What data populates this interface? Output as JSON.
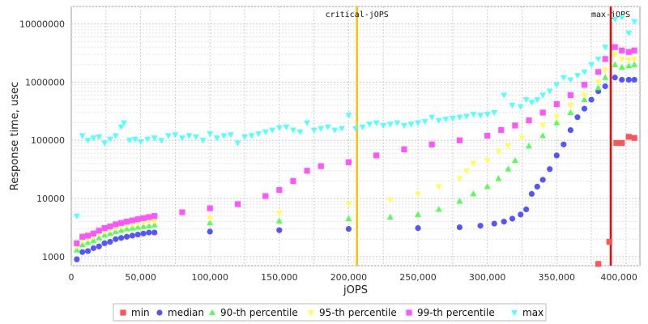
{
  "chart_data": {
    "type": "scatter",
    "xlabel": "jOPS",
    "ylabel": "Response time, usec",
    "xlim": [
      0,
      410000
    ],
    "ylim": [
      700,
      20000000
    ],
    "y_scale": "log",
    "grid": true,
    "x_ticks": [
      0,
      50000,
      100000,
      150000,
      200000,
      250000,
      300000,
      350000,
      400000
    ],
    "x_tick_labels": [
      "0",
      "50,000",
      "100,000",
      "150,000",
      "200,000",
      "250,000",
      "300,000",
      "350,000",
      "400,000"
    ],
    "y_ticks": [
      1000,
      10000,
      100000,
      1000000,
      10000000
    ],
    "y_tick_labels": [
      "1000",
      "10000",
      "100000",
      "1000000",
      "10000000"
    ],
    "legend_position": "bottom",
    "markers": [
      {
        "label": "critical-jOPS",
        "x": 206000,
        "color": "#ffc000"
      },
      {
        "label": "max-jOPS",
        "x": 389000,
        "color": "#ff0000"
      }
    ],
    "series": [
      {
        "name": "min",
        "color": "#ff5555",
        "shape": "square",
        "points": [
          [
            380000,
            750
          ],
          [
            388000,
            1800
          ],
          [
            393000,
            90000
          ],
          [
            397000,
            90000
          ],
          [
            402000,
            115000
          ],
          [
            406000,
            110000
          ]
        ]
      },
      {
        "name": "median",
        "color": "#5555ff",
        "shape": "circle",
        "points": [
          [
            4000,
            900
          ],
          [
            8000,
            1200
          ],
          [
            12000,
            1250
          ],
          [
            16000,
            1400
          ],
          [
            20000,
            1500
          ],
          [
            24000,
            1700
          ],
          [
            28000,
            1800
          ],
          [
            32000,
            2000
          ],
          [
            36000,
            2100
          ],
          [
            40000,
            2200
          ],
          [
            44000,
            2300
          ],
          [
            48000,
            2400
          ],
          [
            52000,
            2500
          ],
          [
            56000,
            2600
          ],
          [
            60000,
            2600
          ],
          [
            100000,
            2700
          ],
          [
            150000,
            2850
          ],
          [
            200000,
            3000
          ],
          [
            250000,
            3100
          ],
          [
            280000,
            3200
          ],
          [
            295000,
            3400
          ],
          [
            305000,
            3700
          ],
          [
            312000,
            4000
          ],
          [
            318000,
            4500
          ],
          [
            324000,
            5300
          ],
          [
            328000,
            6500
          ],
          [
            332000,
            12000
          ],
          [
            336000,
            16000
          ],
          [
            340000,
            21000
          ],
          [
            345000,
            32000
          ],
          [
            350000,
            55000
          ],
          [
            355000,
            85000
          ],
          [
            360000,
            150000
          ],
          [
            365000,
            250000
          ],
          [
            370000,
            350000
          ],
          [
            375000,
            500000
          ],
          [
            380000,
            700000
          ],
          [
            385000,
            850000
          ],
          [
            392000,
            1200000
          ],
          [
            397000,
            1100000
          ],
          [
            402000,
            1100000
          ],
          [
            406000,
            1100000
          ]
        ]
      },
      {
        "name": "90-th percentile",
        "color": "#55ff55",
        "shape": "triangle-up",
        "points": [
          [
            4000,
            1300
          ],
          [
            8000,
            1600
          ],
          [
            12000,
            1750
          ],
          [
            16000,
            1900
          ],
          [
            20000,
            2100
          ],
          [
            24000,
            2350
          ],
          [
            28000,
            2500
          ],
          [
            32000,
            2700
          ],
          [
            36000,
            2850
          ],
          [
            40000,
            3000
          ],
          [
            44000,
            3100
          ],
          [
            48000,
            3200
          ],
          [
            52000,
            3300
          ],
          [
            56000,
            3400
          ],
          [
            60000,
            3500
          ],
          [
            100000,
            3800
          ],
          [
            150000,
            4100
          ],
          [
            200000,
            4500
          ],
          [
            230000,
            4800
          ],
          [
            250000,
            5300
          ],
          [
            265000,
            6500
          ],
          [
            280000,
            9000
          ],
          [
            290000,
            12000
          ],
          [
            300000,
            16000
          ],
          [
            308000,
            22000
          ],
          [
            315000,
            32000
          ],
          [
            320000,
            45000
          ],
          [
            330000,
            80000
          ],
          [
            340000,
            120000
          ],
          [
            350000,
            200000
          ],
          [
            360000,
            300000
          ],
          [
            370000,
            500000
          ],
          [
            380000,
            800000
          ],
          [
            385000,
            1200000
          ],
          [
            392000,
            2000000
          ],
          [
            397000,
            1800000
          ],
          [
            402000,
            1900000
          ],
          [
            406000,
            2000000
          ]
        ]
      },
      {
        "name": "95-th percentile",
        "color": "#ffff55",
        "shape": "triangle-down",
        "points": [
          [
            4000,
            1500
          ],
          [
            8000,
            1900
          ],
          [
            12000,
            2000
          ],
          [
            16000,
            2200
          ],
          [
            20000,
            2500
          ],
          [
            24000,
            2700
          ],
          [
            28000,
            2900
          ],
          [
            32000,
            3100
          ],
          [
            36000,
            3300
          ],
          [
            40000,
            3500
          ],
          [
            44000,
            3600
          ],
          [
            48000,
            3800
          ],
          [
            52000,
            3900
          ],
          [
            56000,
            4000
          ],
          [
            60000,
            4100
          ],
          [
            100000,
            4600
          ],
          [
            150000,
            5600
          ],
          [
            200000,
            8000
          ],
          [
            230000,
            9500
          ],
          [
            250000,
            12000
          ],
          [
            265000,
            16000
          ],
          [
            280000,
            22000
          ],
          [
            285000,
            30000
          ],
          [
            290000,
            40000
          ],
          [
            300000,
            45000
          ],
          [
            308000,
            65000
          ],
          [
            315000,
            80000
          ],
          [
            325000,
            110000
          ],
          [
            340000,
            180000
          ],
          [
            350000,
            250000
          ],
          [
            360000,
            400000
          ],
          [
            370000,
            600000
          ],
          [
            380000,
            1000000
          ],
          [
            385000,
            1600000
          ],
          [
            392000,
            3000000
          ],
          [
            397000,
            2500000
          ],
          [
            402000,
            2400000
          ],
          [
            406000,
            2500000
          ]
        ]
      },
      {
        "name": "99-th percentile",
        "color": "#ff55ff",
        "shape": "square",
        "points": [
          [
            4000,
            1700
          ],
          [
            8000,
            2200
          ],
          [
            12000,
            2300
          ],
          [
            16000,
            2500
          ],
          [
            20000,
            2800
          ],
          [
            24000,
            3100
          ],
          [
            28000,
            3300
          ],
          [
            32000,
            3600
          ],
          [
            36000,
            3800
          ],
          [
            40000,
            4000
          ],
          [
            44000,
            4200
          ],
          [
            48000,
            4400
          ],
          [
            52000,
            4600
          ],
          [
            56000,
            4800
          ],
          [
            60000,
            5000
          ],
          [
            80000,
            5800
          ],
          [
            100000,
            6800
          ],
          [
            120000,
            8000
          ],
          [
            140000,
            11000
          ],
          [
            150000,
            14000
          ],
          [
            160000,
            20000
          ],
          [
            170000,
            30000
          ],
          [
            180000,
            36000
          ],
          [
            200000,
            42000
          ],
          [
            220000,
            55000
          ],
          [
            240000,
            70000
          ],
          [
            260000,
            85000
          ],
          [
            280000,
            100000
          ],
          [
            300000,
            120000
          ],
          [
            310000,
            150000
          ],
          [
            320000,
            180000
          ],
          [
            330000,
            220000
          ],
          [
            340000,
            300000
          ],
          [
            350000,
            420000
          ],
          [
            360000,
            600000
          ],
          [
            370000,
            900000
          ],
          [
            380000,
            1500000
          ],
          [
            385000,
            2500000
          ],
          [
            392000,
            4000000
          ],
          [
            397000,
            3500000
          ],
          [
            402000,
            3300000
          ],
          [
            406000,
            3500000
          ]
        ]
      },
      {
        "name": "max",
        "color": "#55ffff",
        "shape": "triangle-down",
        "points": [
          [
            4000,
            5000
          ],
          [
            8000,
            120000
          ],
          [
            12000,
            100000
          ],
          [
            16000,
            110000
          ],
          [
            20000,
            115000
          ],
          [
            24000,
            90000
          ],
          [
            28000,
            105000
          ],
          [
            32000,
            120000
          ],
          [
            36000,
            170000
          ],
          [
            38000,
            200000
          ],
          [
            42000,
            100000
          ],
          [
            46000,
            105000
          ],
          [
            50000,
            95000
          ],
          [
            55000,
            105000
          ],
          [
            60000,
            110000
          ],
          [
            65000,
            100000
          ],
          [
            70000,
            120000
          ],
          [
            75000,
            125000
          ],
          [
            80000,
            110000
          ],
          [
            85000,
            120000
          ],
          [
            90000,
            115000
          ],
          [
            95000,
            100000
          ],
          [
            100000,
            130000
          ],
          [
            105000,
            110000
          ],
          [
            110000,
            120000
          ],
          [
            115000,
            125000
          ],
          [
            120000,
            90000
          ],
          [
            125000,
            115000
          ],
          [
            130000,
            120000
          ],
          [
            135000,
            130000
          ],
          [
            140000,
            140000
          ],
          [
            145000,
            150000
          ],
          [
            150000,
            165000
          ],
          [
            155000,
            170000
          ],
          [
            160000,
            150000
          ],
          [
            165000,
            140000
          ],
          [
            170000,
            200000
          ],
          [
            175000,
            150000
          ],
          [
            180000,
            160000
          ],
          [
            185000,
            170000
          ],
          [
            190000,
            150000
          ],
          [
            195000,
            160000
          ],
          [
            200000,
            270000
          ],
          [
            205000,
            160000
          ],
          [
            210000,
            170000
          ],
          [
            215000,
            190000
          ],
          [
            220000,
            200000
          ],
          [
            225000,
            180000
          ],
          [
            230000,
            190000
          ],
          [
            235000,
            200000
          ],
          [
            240000,
            180000
          ],
          [
            245000,
            190000
          ],
          [
            250000,
            200000
          ],
          [
            255000,
            210000
          ],
          [
            260000,
            250000
          ],
          [
            265000,
            220000
          ],
          [
            270000,
            230000
          ],
          [
            275000,
            240000
          ],
          [
            280000,
            250000
          ],
          [
            285000,
            260000
          ],
          [
            290000,
            280000
          ],
          [
            295000,
            270000
          ],
          [
            300000,
            280000
          ],
          [
            305000,
            300000
          ],
          [
            312000,
            600000
          ],
          [
            318000,
            400000
          ],
          [
            324000,
            380000
          ],
          [
            328000,
            500000
          ],
          [
            332000,
            450000
          ],
          [
            336000,
            500000
          ],
          [
            340000,
            600000
          ],
          [
            345000,
            700000
          ],
          [
            350000,
            900000
          ],
          [
            355000,
            1200000
          ],
          [
            360000,
            1100000
          ],
          [
            365000,
            1300000
          ],
          [
            370000,
            1500000
          ],
          [
            375000,
            2000000
          ],
          [
            380000,
            2500000
          ],
          [
            385000,
            4000000
          ],
          [
            392000,
            12000000
          ],
          [
            397000,
            13000000
          ],
          [
            402000,
            7000000
          ],
          [
            406000,
            11000000
          ]
        ]
      }
    ]
  }
}
